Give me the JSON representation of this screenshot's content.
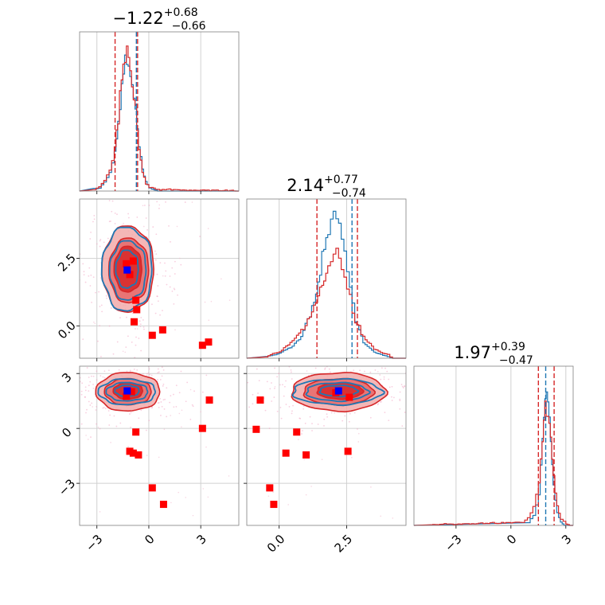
{
  "chart_data": [
    {
      "type": "histogram",
      "panel": "marginal-param1",
      "title": {
        "value": "−1.22",
        "sup": "+0.68",
        "sub": "−0.66"
      },
      "xlim": [
        -4.0,
        5.2
      ],
      "xticks": [
        -3,
        0,
        3
      ],
      "xgrid": [
        -3,
        0,
        3
      ],
      "quantiles_red": [
        -1.95,
        -0.65
      ],
      "quantiles_blue": [
        -0.72
      ],
      "series": [
        {
          "name": "",
          "color": "#1f77b4",
          "bins": [
            [
              -3.2,
              0.01
            ],
            [
              -2.9,
              0.02
            ],
            [
              -2.6,
              0.06
            ],
            [
              -2.3,
              0.12
            ],
            [
              -2.0,
              0.25
            ],
            [
              -1.8,
              0.45
            ],
            [
              -1.6,
              0.7
            ],
            [
              -1.4,
              0.87
            ],
            [
              -1.2,
              0.82
            ],
            [
              -1.0,
              0.7
            ],
            [
              -0.8,
              0.52
            ],
            [
              -0.6,
              0.3
            ],
            [
              -0.4,
              0.14
            ],
            [
              -0.2,
              0.06
            ],
            [
              0.0,
              0.02
            ],
            [
              0.3,
              0.01
            ]
          ]
        },
        {
          "name": "",
          "color": "#d62728",
          "bins": [
            [
              -3.2,
              0.01
            ],
            [
              -2.9,
              0.03
            ],
            [
              -2.6,
              0.07
            ],
            [
              -2.3,
              0.14
            ],
            [
              -2.0,
              0.28
            ],
            [
              -1.8,
              0.48
            ],
            [
              -1.6,
              0.72
            ],
            [
              -1.4,
              0.88
            ],
            [
              -1.2,
              0.85
            ],
            [
              -1.0,
              0.68
            ],
            [
              -0.8,
              0.5
            ],
            [
              -0.6,
              0.28
            ],
            [
              -0.4,
              0.12
            ],
            [
              -0.2,
              0.05
            ],
            [
              0.0,
              0.02
            ],
            [
              0.5,
              0.01
            ],
            [
              3.5,
              0.005
            ],
            [
              4.8,
              0.005
            ]
          ]
        }
      ]
    },
    {
      "type": "histogram",
      "panel": "marginal-param2",
      "title": {
        "value": "2.14",
        "sup": "+0.77",
        "sub": "−0.74"
      },
      "xlim": [
        -1.2,
        4.7
      ],
      "xticks": [
        0.0,
        2.5
      ],
      "xgrid": [
        0.0,
        2.5
      ],
      "quantiles_red": [
        1.4,
        2.9
      ],
      "quantiles_blue": [
        2.7
      ],
      "series": [
        {
          "name": "",
          "color": "#1f77b4",
          "bins": [
            [
              -0.5,
              0.01
            ],
            [
              0.0,
              0.03
            ],
            [
              0.4,
              0.07
            ],
            [
              0.8,
              0.14
            ],
            [
              1.2,
              0.32
            ],
            [
              1.5,
              0.55
            ],
            [
              1.8,
              0.8
            ],
            [
              2.0,
              0.95
            ],
            [
              2.2,
              0.92
            ],
            [
              2.4,
              0.7
            ],
            [
              2.6,
              0.45
            ],
            [
              2.8,
              0.25
            ],
            [
              3.1,
              0.1
            ],
            [
              3.5,
              0.04
            ],
            [
              4.0,
              0.01
            ]
          ]
        },
        {
          "name": "",
          "color": "#d62728",
          "bins": [
            [
              -0.5,
              0.01
            ],
            [
              0.0,
              0.04
            ],
            [
              0.4,
              0.1
            ],
            [
              0.8,
              0.18
            ],
            [
              1.2,
              0.3
            ],
            [
              1.5,
              0.45
            ],
            [
              1.8,
              0.58
            ],
            [
              2.0,
              0.66
            ],
            [
              2.2,
              0.64
            ],
            [
              2.4,
              0.52
            ],
            [
              2.6,
              0.38
            ],
            [
              2.8,
              0.24
            ],
            [
              3.1,
              0.14
            ],
            [
              3.5,
              0.06
            ],
            [
              4.0,
              0.02
            ]
          ]
        }
      ]
    },
    {
      "type": "histogram",
      "panel": "marginal-param3",
      "title": {
        "value": "1.97",
        "sup": "+0.39",
        "sub": "−0.47"
      },
      "xlim": [
        -5.3,
        3.4
      ],
      "xticks": [
        -3,
        0,
        3
      ],
      "xgrid": [
        -3,
        0,
        3
      ],
      "quantiles_red": [
        1.5,
        2.36
      ],
      "quantiles_blue": [
        1.9
      ],
      "series": [
        {
          "name": "",
          "color": "#1f77b4",
          "bins": [
            [
              0.9,
              0.02
            ],
            [
              1.2,
              0.06
            ],
            [
              1.5,
              0.2
            ],
            [
              1.7,
              0.55
            ],
            [
              1.85,
              0.85
            ],
            [
              2.0,
              0.8
            ],
            [
              2.15,
              0.55
            ],
            [
              2.3,
              0.25
            ],
            [
              2.5,
              0.08
            ],
            [
              2.7,
              0.02
            ]
          ]
        },
        {
          "name": "",
          "color": "#d62728",
          "bins": [
            [
              -4.4,
              0.005
            ],
            [
              0.6,
              0.02
            ],
            [
              0.9,
              0.05
            ],
            [
              1.2,
              0.12
            ],
            [
              1.5,
              0.3
            ],
            [
              1.7,
              0.55
            ],
            [
              1.85,
              0.75
            ],
            [
              2.0,
              0.72
            ],
            [
              2.15,
              0.55
            ],
            [
              2.3,
              0.32
            ],
            [
              2.5,
              0.12
            ],
            [
              2.7,
              0.04
            ],
            [
              3.0,
              0.01
            ]
          ]
        }
      ]
    },
    {
      "type": "scatter",
      "panel": "joint-param1-param2",
      "xlim": [
        -4.0,
        5.2
      ],
      "ylim": [
        -1.2,
        4.7
      ],
      "yticks": [
        0.0,
        2.5
      ],
      "xgrid": [
        -3,
        0,
        3
      ],
      "ygrid": [
        0.0,
        2.5
      ],
      "blue_marker": [
        -1.25,
        2.07
      ],
      "red_points": [
        [
          -1.3,
          2.3
        ],
        [
          -0.7,
          0.6
        ],
        [
          -0.75,
          0.95
        ],
        [
          -0.85,
          0.15
        ],
        [
          0.2,
          -0.35
        ],
        [
          0.8,
          -0.15
        ],
        [
          3.1,
          -0.72
        ],
        [
          3.45,
          -0.6
        ],
        [
          -1.1,
          1.9
        ],
        [
          -0.9,
          2.4
        ]
      ],
      "contours_red": [
        {
          "cx": -1.2,
          "cy": 2.1,
          "rx": 1.5,
          "ry": 1.6
        },
        {
          "cx": -1.15,
          "cy": 2.05,
          "rx": 1.15,
          "ry": 1.2
        },
        {
          "cx": -1.2,
          "cy": 2.1,
          "rx": 0.8,
          "ry": 0.85
        }
      ],
      "contours_blue": [
        {
          "cx": -1.25,
          "cy": 2.1,
          "rx": 1.45,
          "ry": 1.55
        },
        {
          "cx": -1.2,
          "cy": 2.05,
          "rx": 1.05,
          "ry": 1.1
        },
        {
          "cx": -1.25,
          "cy": 2.1,
          "rx": 0.65,
          "ry": 0.7
        }
      ]
    },
    {
      "type": "scatter",
      "panel": "joint-param1-param3",
      "xlim": [
        -4.0,
        5.2
      ],
      "ylim": [
        -5.3,
        3.4
      ],
      "yticks": [
        -3,
        0,
        3
      ],
      "xgrid": [
        -3,
        0,
        3
      ],
      "ygrid": [
        -3,
        0,
        3
      ],
      "blue_marker": [
        -1.25,
        2.05
      ],
      "red_points": [
        [
          -1.3,
          1.75
        ],
        [
          -0.75,
          -0.2
        ],
        [
          -1.1,
          -1.25
        ],
        [
          -0.9,
          -1.35
        ],
        [
          -0.6,
          -1.45
        ],
        [
          0.2,
          -3.25
        ],
        [
          0.85,
          -4.15
        ],
        [
          3.1,
          0.0
        ],
        [
          3.5,
          1.55
        ],
        [
          -1.0,
          2.0
        ]
      ],
      "contours_red": [
        {
          "cx": -1.2,
          "cy": 2.0,
          "rx": 1.85,
          "ry": 1.05
        },
        {
          "cx": -1.2,
          "cy": 2.0,
          "rx": 1.35,
          "ry": 0.72
        },
        {
          "cx": -1.2,
          "cy": 2.05,
          "rx": 0.85,
          "ry": 0.45
        }
      ],
      "contours_blue": [
        {
          "cx": -1.25,
          "cy": 2.0,
          "rx": 1.65,
          "ry": 0.7
        },
        {
          "cx": -1.25,
          "cy": 2.0,
          "rx": 1.2,
          "ry": 0.5
        },
        {
          "cx": -1.25,
          "cy": 2.05,
          "rx": 0.7,
          "ry": 0.3
        }
      ]
    },
    {
      "type": "scatter",
      "panel": "joint-param2-param3",
      "xlim": [
        -1.2,
        4.7
      ],
      "ylim": [
        -5.3,
        3.4
      ],
      "xgrid": [
        0.0,
        2.5
      ],
      "ygrid": [
        -3,
        0,
        3
      ],
      "blue_marker": [
        2.2,
        2.05
      ],
      "red_points": [
        [
          -0.7,
          1.55
        ],
        [
          -0.85,
          -0.05
        ],
        [
          -0.35,
          -3.25
        ],
        [
          -0.2,
          -4.15
        ],
        [
          0.25,
          -1.35
        ],
        [
          0.65,
          -0.2
        ],
        [
          1.0,
          -1.45
        ],
        [
          2.55,
          -1.25
        ],
        [
          2.6,
          1.7
        ],
        [
          2.1,
          1.95
        ]
      ],
      "contours_red": [
        {
          "cx": 2.2,
          "cy": 2.0,
          "rx": 1.75,
          "ry": 1.05
        },
        {
          "cx": 2.2,
          "cy": 2.0,
          "rx": 1.3,
          "ry": 0.72
        },
        {
          "cx": 2.25,
          "cy": 2.05,
          "rx": 0.85,
          "ry": 0.45
        }
      ],
      "contours_blue": [
        {
          "cx": 2.15,
          "cy": 2.0,
          "rx": 1.65,
          "ry": 0.7
        },
        {
          "cx": 2.15,
          "cy": 2.0,
          "rx": 1.15,
          "ry": 0.5
        },
        {
          "cx": 2.2,
          "cy": 2.05,
          "rx": 0.7,
          "ry": 0.3
        }
      ]
    }
  ],
  "axes": {
    "bottom_row_xticks": [
      {
        "panel": "joint-param1-param3",
        "labels": [
          "−3",
          "0",
          "3"
        ]
      },
      {
        "panel": "joint-param2-param3",
        "labels": [
          "0.0",
          "2.5"
        ]
      },
      {
        "panel": "marginal-param3",
        "labels": [
          "−3",
          "0",
          "3"
        ]
      }
    ],
    "left_col_yticks": [
      {
        "panel": "joint-param1-param2",
        "labels": [
          "0.0",
          "2.5"
        ]
      },
      {
        "panel": "joint-param1-param3",
        "labels": [
          "−3",
          "0",
          "3"
        ]
      }
    ]
  },
  "colors": {
    "blue": "#1f77b4",
    "red": "#d62728",
    "marker_red": "#ff0000",
    "marker_blue": "#0000ff",
    "grid": "#d0d0d0"
  }
}
